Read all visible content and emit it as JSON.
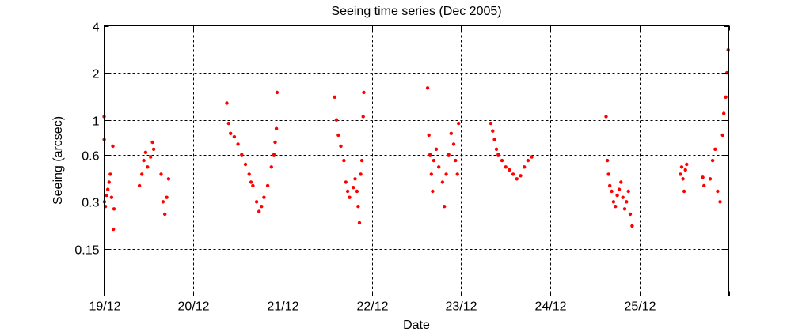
{
  "chart_data": {
    "type": "scatter",
    "title": "Seeing time series (Dec 2005)",
    "xlabel": "Date",
    "ylabel": "Seeing (arcsec)",
    "yscale": "log2",
    "ylim": [
      0.075,
      4
    ],
    "xlim": [
      "2005-12-19",
      "2005-12-26"
    ],
    "grid": true,
    "marker_color": "#ff0000",
    "x_ticks": [
      {
        "date": "2005-12-19",
        "label": "19/12"
      },
      {
        "date": "2005-12-20",
        "label": "20/12"
      },
      {
        "date": "2005-12-21",
        "label": "21/12"
      },
      {
        "date": "2005-12-22",
        "label": "22/12"
      },
      {
        "date": "2005-12-23",
        "label": "23/12"
      },
      {
        "date": "2005-12-24",
        "label": "24/12"
      },
      {
        "date": "2005-12-25",
        "label": "25/12"
      },
      {
        "date": "2005-12-26",
        "label": ""
      }
    ],
    "y_ticks": [
      {
        "value": 0.15,
        "label": "0.15"
      },
      {
        "value": 0.3,
        "label": "0.3"
      },
      {
        "value": 0.6,
        "label": "0.6"
      },
      {
        "value": 1,
        "label": "1"
      },
      {
        "value": 2,
        "label": "2"
      },
      {
        "value": 4,
        "label": "4"
      }
    ],
    "series": [
      {
        "points": [
          [
            "2005-12-19T00:00",
            1.05
          ],
          [
            "2005-12-19T00:01",
            0.75
          ],
          [
            "2005-12-19T00:05",
            0.3
          ],
          [
            "2005-12-19T00:20",
            0.28
          ],
          [
            "2005-12-19T00:40",
            0.33
          ],
          [
            "2005-12-19T01:00",
            0.36
          ],
          [
            "2005-12-19T01:20",
            0.4
          ],
          [
            "2005-12-19T01:40",
            0.45
          ],
          [
            "2005-12-19T02:00",
            0.32
          ],
          [
            "2005-12-19T02:20",
            0.68
          ],
          [
            "2005-12-19T02:30",
            0.2
          ],
          [
            "2005-12-19T02:40",
            0.27
          ],
          [
            "2005-12-19T09:30",
            0.38
          ],
          [
            "2005-12-19T10:10",
            0.45
          ],
          [
            "2005-12-19T10:40",
            0.55
          ],
          [
            "2005-12-19T11:10",
            0.62
          ],
          [
            "2005-12-19T11:40",
            0.5
          ],
          [
            "2005-12-19T12:30",
            0.58
          ],
          [
            "2005-12-19T13:00",
            0.72
          ],
          [
            "2005-12-19T13:20",
            0.65
          ],
          [
            "2005-12-19T15:20",
            0.45
          ],
          [
            "2005-12-19T15:50",
            0.3
          ],
          [
            "2005-12-19T16:20",
            0.25
          ],
          [
            "2005-12-19T16:50",
            0.32
          ],
          [
            "2005-12-19T17:20",
            0.42
          ],
          [
            "2005-12-20T09:00",
            1.28
          ],
          [
            "2005-12-20T09:30",
            0.95
          ],
          [
            "2005-12-20T10:00",
            0.82
          ],
          [
            "2005-12-20T11:00",
            0.78
          ],
          [
            "2005-12-20T12:00",
            0.7
          ],
          [
            "2005-12-20T13:00",
            0.6
          ],
          [
            "2005-12-20T14:00",
            0.52
          ],
          [
            "2005-12-20T15:00",
            0.45
          ],
          [
            "2005-12-20T15:30",
            0.4
          ],
          [
            "2005-12-20T16:00",
            0.38
          ],
          [
            "2005-12-20T17:00",
            0.3
          ],
          [
            "2005-12-20T17:40",
            0.26
          ],
          [
            "2005-12-20T18:20",
            0.28
          ],
          [
            "2005-12-20T19:00",
            0.32
          ],
          [
            "2005-12-20T20:00",
            0.38
          ],
          [
            "2005-12-20T21:00",
            0.5
          ],
          [
            "2005-12-20T21:40",
            0.6
          ],
          [
            "2005-12-20T22:00",
            0.72
          ],
          [
            "2005-12-20T22:20",
            0.88
          ],
          [
            "2005-12-20T22:30",
            1.5
          ],
          [
            "2005-12-21T14:00",
            1.4
          ],
          [
            "2005-12-21T14:30",
            1.0
          ],
          [
            "2005-12-21T15:00",
            0.8
          ],
          [
            "2005-12-21T15:40",
            0.68
          ],
          [
            "2005-12-21T16:30",
            0.55
          ],
          [
            "2005-12-21T17:00",
            0.4
          ],
          [
            "2005-12-21T17:30",
            0.35
          ],
          [
            "2005-12-21T18:00",
            0.32
          ],
          [
            "2005-12-21T19:00",
            0.37
          ],
          [
            "2005-12-21T19:30",
            0.42
          ],
          [
            "2005-12-21T20:00",
            0.35
          ],
          [
            "2005-12-21T20:20",
            0.28
          ],
          [
            "2005-12-21T20:40",
            0.22
          ],
          [
            "2005-12-21T21:00",
            0.45
          ],
          [
            "2005-12-21T21:20",
            0.55
          ],
          [
            "2005-12-21T21:40",
            1.05
          ],
          [
            "2005-12-21T21:50",
            1.5
          ],
          [
            "2005-12-22T15:00",
            1.6
          ],
          [
            "2005-12-22T15:20",
            0.8
          ],
          [
            "2005-12-22T15:40",
            0.6
          ],
          [
            "2005-12-22T16:00",
            0.45
          ],
          [
            "2005-12-22T16:20",
            0.35
          ],
          [
            "2005-12-22T16:40",
            0.55
          ],
          [
            "2005-12-22T17:20",
            0.65
          ],
          [
            "2005-12-22T18:00",
            0.5
          ],
          [
            "2005-12-22T19:00",
            0.4
          ],
          [
            "2005-12-22T19:30",
            0.28
          ],
          [
            "2005-12-22T20:00",
            0.45
          ],
          [
            "2005-12-22T20:40",
            0.6
          ],
          [
            "2005-12-22T21:20",
            0.82
          ],
          [
            "2005-12-22T22:00",
            0.7
          ],
          [
            "2005-12-22T22:30",
            0.55
          ],
          [
            "2005-12-22T23:00",
            0.45
          ],
          [
            "2005-12-22T23:20",
            0.95
          ],
          [
            "2005-12-23T08:00",
            0.95
          ],
          [
            "2005-12-23T08:30",
            0.85
          ],
          [
            "2005-12-23T09:00",
            0.75
          ],
          [
            "2005-12-23T09:30",
            0.65
          ],
          [
            "2005-12-23T10:00",
            0.6
          ],
          [
            "2005-12-23T11:00",
            0.55
          ],
          [
            "2005-12-23T12:00",
            0.5
          ],
          [
            "2005-12-23T13:00",
            0.48
          ],
          [
            "2005-12-23T14:00",
            0.45
          ],
          [
            "2005-12-23T15:00",
            0.42
          ],
          [
            "2005-12-23T16:00",
            0.44
          ],
          [
            "2005-12-23T17:00",
            0.5
          ],
          [
            "2005-12-23T18:00",
            0.55
          ],
          [
            "2005-12-23T19:00",
            0.58
          ],
          [
            "2005-12-24T15:00",
            1.05
          ],
          [
            "2005-12-24T15:20",
            0.55
          ],
          [
            "2005-12-24T15:40",
            0.45
          ],
          [
            "2005-12-24T16:00",
            0.38
          ],
          [
            "2005-12-24T16:30",
            0.35
          ],
          [
            "2005-12-24T17:00",
            0.3
          ],
          [
            "2005-12-24T17:30",
            0.28
          ],
          [
            "2005-12-24T18:00",
            0.33
          ],
          [
            "2005-12-24T18:30",
            0.36
          ],
          [
            "2005-12-24T19:00",
            0.4
          ],
          [
            "2005-12-24T19:30",
            0.32
          ],
          [
            "2005-12-24T20:00",
            0.27
          ],
          [
            "2005-12-24T20:30",
            0.3
          ],
          [
            "2005-12-24T21:00",
            0.35
          ],
          [
            "2005-12-24T21:30",
            0.25
          ],
          [
            "2005-12-24T22:00",
            0.21
          ],
          [
            "2005-12-25T11:00",
            0.45
          ],
          [
            "2005-12-25T11:20",
            0.5
          ],
          [
            "2005-12-25T11:40",
            0.42
          ],
          [
            "2005-12-25T12:00",
            0.35
          ],
          [
            "2005-12-25T12:20",
            0.48
          ],
          [
            "2005-12-25T12:40",
            0.52
          ],
          [
            "2005-12-25T17:00",
            0.43
          ],
          [
            "2005-12-25T17:20",
            0.38
          ],
          [
            "2005-12-25T19:00",
            0.42
          ],
          [
            "2005-12-25T19:40",
            0.55
          ],
          [
            "2005-12-25T20:20",
            0.65
          ],
          [
            "2005-12-25T21:00",
            0.35
          ],
          [
            "2005-12-25T21:40",
            0.3
          ],
          [
            "2005-12-25T22:20",
            0.8
          ],
          [
            "2005-12-25T22:40",
            1.1
          ],
          [
            "2005-12-25T23:10",
            1.4
          ],
          [
            "2005-12-25T23:30",
            2.0
          ],
          [
            "2005-12-25T23:50",
            2.8
          ]
        ]
      }
    ]
  }
}
